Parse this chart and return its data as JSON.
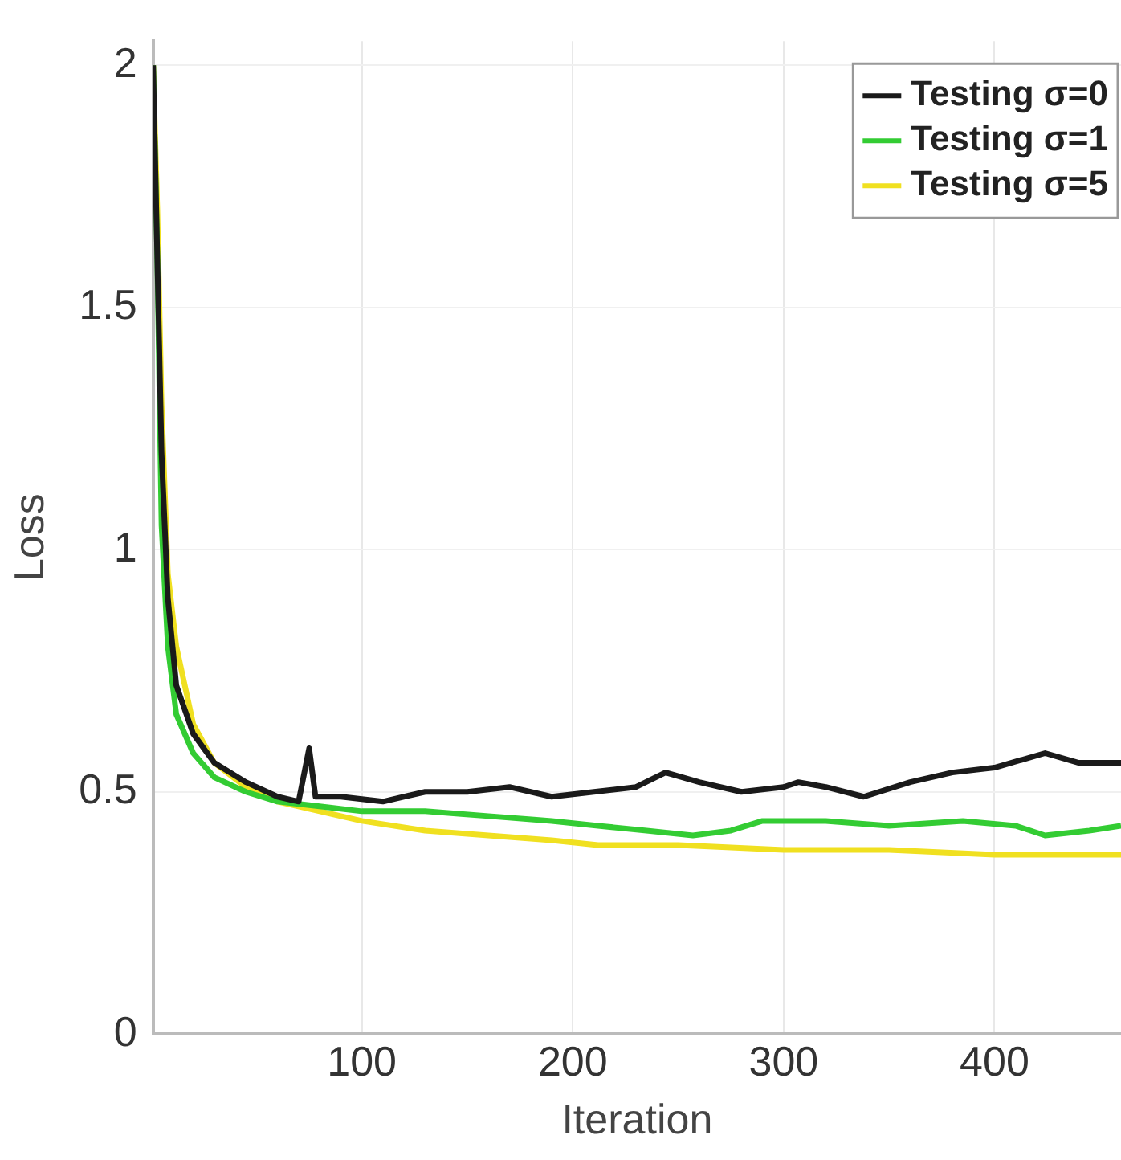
{
  "chart_data": {
    "type": "line",
    "xlabel": "Iteration",
    "ylabel": "Loss",
    "xlim": [
      1,
      460
    ],
    "xticks": [
      100,
      200,
      300,
      400
    ],
    "ylim": [
      0,
      2.05
    ],
    "yticks": [
      0,
      0.5,
      1,
      1.5,
      2
    ],
    "grid": true,
    "legend": "top right",
    "marker": "none",
    "line_style": "solid",
    "series": [
      {
        "name": "Testing σ=0",
        "color": "#1a1a1a",
        "x": [
          1,
          3,
          5,
          8,
          12,
          20,
          30,
          45,
          60,
          70,
          75,
          78,
          90,
          110,
          130,
          150,
          170,
          190,
          210,
          230,
          244,
          260,
          280,
          300,
          307,
          320,
          338,
          360,
          380,
          400,
          424,
          440,
          460
        ],
        "values": [
          2.0,
          1.6,
          1.2,
          0.9,
          0.72,
          0.62,
          0.56,
          0.52,
          0.49,
          0.48,
          0.59,
          0.49,
          0.49,
          0.48,
          0.5,
          0.5,
          0.51,
          0.49,
          0.5,
          0.51,
          0.54,
          0.52,
          0.5,
          0.51,
          0.52,
          0.51,
          0.49,
          0.52,
          0.54,
          0.55,
          0.58,
          0.56,
          0.56
        ]
      },
      {
        "name": "Testing σ=1",
        "color": "#33cc33",
        "x": [
          1,
          3,
          5,
          8,
          12,
          20,
          30,
          45,
          60,
          80,
          100,
          130,
          160,
          190,
          212,
          235,
          257,
          275,
          290,
          320,
          350,
          385,
          410,
          424,
          445,
          460
        ],
        "values": [
          2.0,
          1.6,
          1.05,
          0.8,
          0.66,
          0.58,
          0.53,
          0.5,
          0.48,
          0.47,
          0.46,
          0.46,
          0.45,
          0.44,
          0.43,
          0.42,
          0.41,
          0.42,
          0.44,
          0.44,
          0.43,
          0.44,
          0.43,
          0.41,
          0.42,
          0.43
        ]
      },
      {
        "name": "Testing σ=5",
        "color": "#f0e020",
        "x": [
          1,
          3,
          5,
          8,
          12,
          20,
          30,
          45,
          60,
          80,
          100,
          130,
          160,
          190,
          212,
          250,
          300,
          350,
          400,
          430,
          460
        ],
        "values": [
          2.0,
          1.7,
          1.3,
          0.95,
          0.8,
          0.64,
          0.56,
          0.51,
          0.48,
          0.46,
          0.44,
          0.42,
          0.41,
          0.4,
          0.39,
          0.39,
          0.38,
          0.38,
          0.37,
          0.37,
          0.37
        ]
      }
    ]
  }
}
